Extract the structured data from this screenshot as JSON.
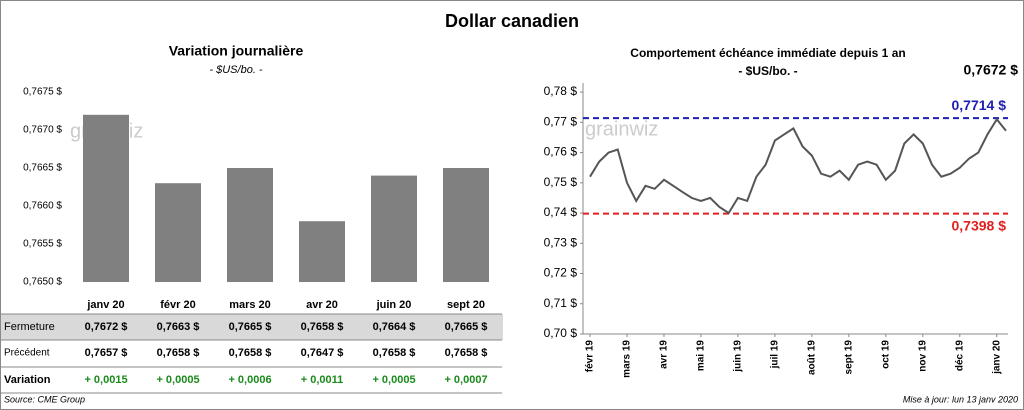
{
  "title": "Dollar canadien",
  "watermark": "grainwiz",
  "chart_data": [
    {
      "type": "bar",
      "title": "Variation journalière",
      "subtitle": "- $US/bo. -",
      "categories": [
        "janv 20",
        "févr 20",
        "mars 20",
        "avr 20",
        "juin 20",
        "sept 20"
      ],
      "values": [
        0.7672,
        0.7663,
        0.7665,
        0.7658,
        0.7664,
        0.7665
      ],
      "value_labels": [
        "0,7672 $",
        "0,7663 $",
        "0,7665 $",
        "0,7658 $",
        "0,7664 $",
        "0,7665 $"
      ],
      "color": "#808080",
      "ylim": [
        0.765,
        0.7675
      ],
      "yticks": [
        {
          "value": 0.765,
          "label": "0,7650 $"
        },
        {
          "value": 0.7655,
          "label": "0,7655 $"
        },
        {
          "value": 0.766,
          "label": "0,7660 $"
        },
        {
          "value": 0.7665,
          "label": "0,7665 $"
        },
        {
          "value": 0.767,
          "label": "0,7670 $"
        },
        {
          "value": 0.7675,
          "label": "0,7675 $"
        }
      ]
    },
    {
      "type": "line",
      "title": "Comportement échéance immédiate depuis 1 an",
      "subtitle": "- $US/bo. -",
      "categories": [
        "févr 19",
        null,
        null,
        null,
        "mars 19",
        null,
        null,
        null,
        "avr 19",
        null,
        null,
        null,
        "mai 19",
        null,
        null,
        null,
        "juin 19",
        null,
        null,
        null,
        "juil 19",
        null,
        null,
        null,
        "août 19",
        null,
        null,
        null,
        "sept 19",
        null,
        null,
        null,
        "oct 19",
        null,
        null,
        null,
        "nov 19",
        null,
        null,
        null,
        "déc 19",
        null,
        null,
        null,
        "janv 20",
        null
      ],
      "values": [
        0.752,
        0.757,
        0.76,
        0.761,
        0.75,
        0.744,
        0.749,
        0.748,
        0.751,
        0.749,
        0.747,
        0.745,
        0.744,
        0.745,
        0.742,
        0.74,
        0.745,
        0.744,
        0.752,
        0.756,
        0.764,
        0.766,
        0.768,
        0.762,
        0.759,
        0.753,
        0.752,
        0.754,
        0.751,
        0.756,
        0.757,
        0.756,
        0.751,
        0.754,
        0.763,
        0.766,
        0.763,
        0.756,
        0.752,
        0.753,
        0.755,
        0.758,
        0.76,
        0.766,
        0.771,
        0.7672
      ],
      "color": "#555555",
      "ylim": [
        0.7,
        0.783
      ],
      "yticks": [
        {
          "value": 0.7,
          "label": "0,70 $"
        },
        {
          "value": 0.71,
          "label": "0,71 $"
        },
        {
          "value": 0.72,
          "label": "0,72 $"
        },
        {
          "value": 0.73,
          "label": "0,73 $"
        },
        {
          "value": 0.74,
          "label": "0,74 $"
        },
        {
          "value": 0.75,
          "label": "0,75 $"
        },
        {
          "value": 0.76,
          "label": "0,76 $"
        },
        {
          "value": 0.77,
          "label": "0,77 $"
        },
        {
          "value": 0.78,
          "label": "0,78 $"
        }
      ],
      "annotations": [
        {
          "value": 0.7672,
          "label": "0,7672 $",
          "color": "#000000",
          "line": false
        },
        {
          "value": 0.7714,
          "label": "0,7714 $",
          "color": "#1f1fb4",
          "line": true
        },
        {
          "value": 0.7398,
          "label": "0,7398 $",
          "color": "#e02020",
          "line": true
        }
      ]
    }
  ],
  "table": {
    "fermeture_label": "Fermeture",
    "precedent": {
      "label": "Précédent",
      "values": [
        "0,7657 $",
        "0,7658 $",
        "0,7658 $",
        "0,7647 $",
        "0,7658 $",
        "0,7658 $"
      ]
    },
    "variation": {
      "label": "Variation",
      "values": [
        "+ 0,0015",
        "+ 0,0005",
        "+ 0,0006",
        "+ 0,0011",
        "+ 0,0005",
        "+ 0,0007"
      ]
    }
  },
  "footer": {
    "source": "Source: CME Group",
    "updated": "Mise à jour: lun 13 janv 2020"
  }
}
